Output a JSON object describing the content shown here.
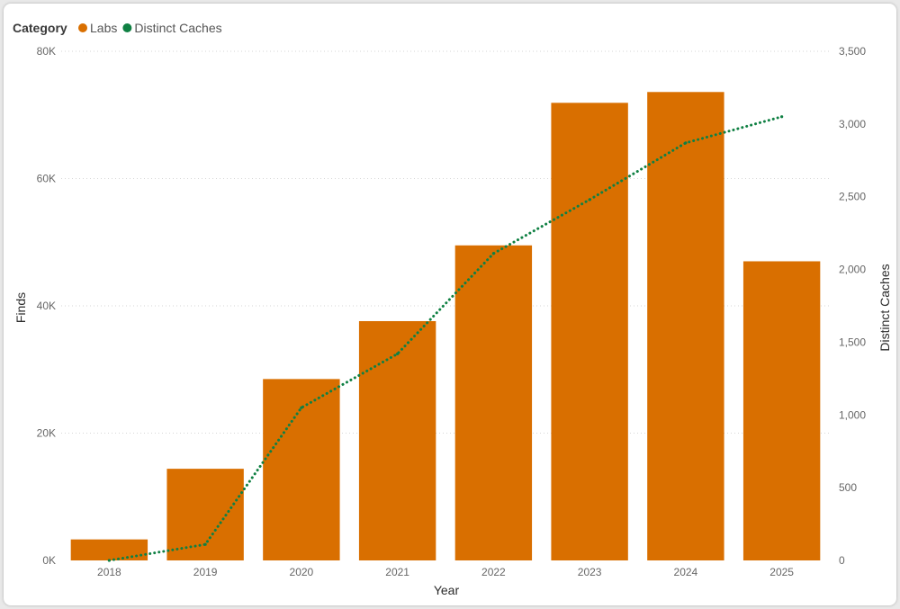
{
  "chart_data": {
    "type": "bar",
    "legend": {
      "title": "Category",
      "position": "top-left"
    },
    "categories": [
      "2018",
      "2019",
      "2020",
      "2021",
      "2022",
      "2023",
      "2024",
      "2025"
    ],
    "series": [
      {
        "name": "Labs",
        "type": "bar",
        "axis": "left",
        "color": "#d96f00",
        "values": [
          3300,
          14400,
          28500,
          37600,
          49500,
          71900,
          73600,
          47000
        ]
      },
      {
        "name": "Distinct Caches",
        "type": "line",
        "style": "dotted",
        "axis": "right",
        "color": "#0f8043",
        "values": [
          0,
          110,
          1050,
          1420,
          2110,
          2480,
          2870,
          3050
        ]
      }
    ],
    "xlabel": "Year",
    "ylabel": "Finds",
    "y2label": "Distinct Caches",
    "ylim": [
      0,
      80000
    ],
    "y2lim": [
      0,
      3500
    ],
    "yticks": [
      "0K",
      "20K",
      "40K",
      "60K",
      "80K"
    ],
    "y2ticks": [
      "0",
      "500",
      "1,000",
      "1,500",
      "2,000",
      "2,500",
      "3,000",
      "3,500"
    ],
    "grid": true
  }
}
